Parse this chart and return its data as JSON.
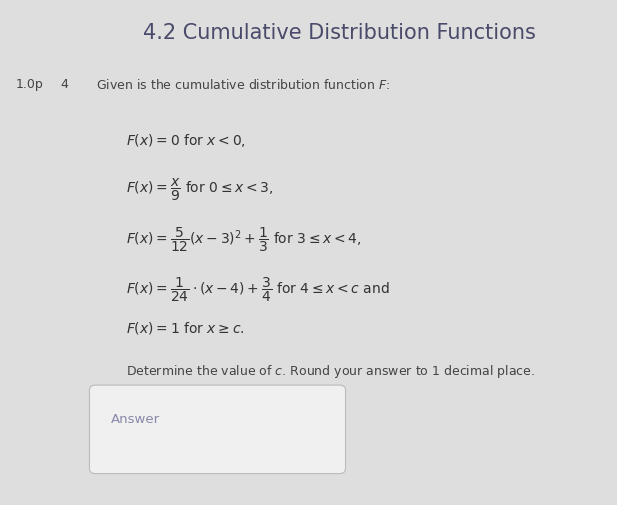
{
  "title": "4.2 Cumulative Distribution Functions",
  "title_fontsize": 15,
  "title_color": "#4a4a6a",
  "background_color": "#dedede",
  "points_label": "1.0p",
  "number_label": "4",
  "intro_text": "Given is the cumulative distribution function $F$:",
  "lines": [
    "$F(x) = 0$ for $x < 0$,",
    "$F(x) = \\dfrac{x}{9}$ for $0 \\leq x < 3$,",
    "$F(x) = \\dfrac{5}{12}(x-3)^2 + \\dfrac{1}{3}$ for $3 \\leq x < 4$,",
    "$F(x) = \\dfrac{1}{24} \\cdot (x-4) + \\dfrac{3}{4}$ for $4 \\leq x < c$ and",
    "$F(x) = 1$ for $x \\geq c$."
  ],
  "determine_text": "Determine the value of $c$. Round your answer to 1 decimal place.",
  "answer_box_text": "Answer",
  "text_color": "#444444",
  "math_color": "#333333",
  "answer_text_color": "#8888aa",
  "answer_box_facecolor": "#f0f0f0",
  "answer_box_edgecolor": "#bbbbbb"
}
